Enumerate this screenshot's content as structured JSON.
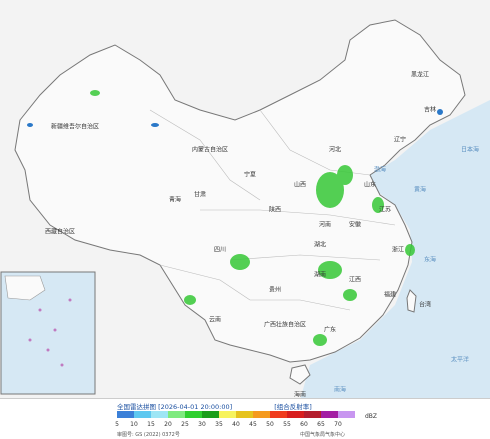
{
  "header": {
    "title": "全国雷达拼图 [2026-04-01 20:00:00]",
    "product": "[组合反射率]"
  },
  "legend": {
    "values": [
      5,
      10,
      15,
      20,
      25,
      30,
      35,
      40,
      45,
      50,
      55,
      60,
      65,
      70
    ],
    "colors": [
      "#3b80d8",
      "#5ec8f0",
      "#9ee6f5",
      "#7fea7f",
      "#2fcf2f",
      "#1a9e1a",
      "#f7f35e",
      "#e6c31e",
      "#f59a1e",
      "#f03c1e",
      "#d81e1e",
      "#b41e2e",
      "#a31ea3",
      "#c896f0"
    ],
    "unit": "dBZ"
  },
  "footer": {
    "approval": "审图号: GS (2022) 0372号",
    "source": "中国气象局气象中心"
  },
  "map": {
    "regions": [
      "新疆维吾尔自治区",
      "西藏自治区",
      "青海",
      "内蒙古自治区",
      "黑龙江",
      "吉林",
      "辽宁",
      "甘肃",
      "宁夏",
      "陕西",
      "山西",
      "河北",
      "山东",
      "河南",
      "四川",
      "湖北",
      "安徽",
      "江苏",
      "贵州",
      "湖南",
      "江西",
      "浙江",
      "云南",
      "广西壮族自治区",
      "广东",
      "福建",
      "台湾",
      "海南"
    ],
    "seas": [
      "渤海",
      "黄海",
      "东海",
      "南海",
      "太平洋",
      "日本海"
    ]
  }
}
